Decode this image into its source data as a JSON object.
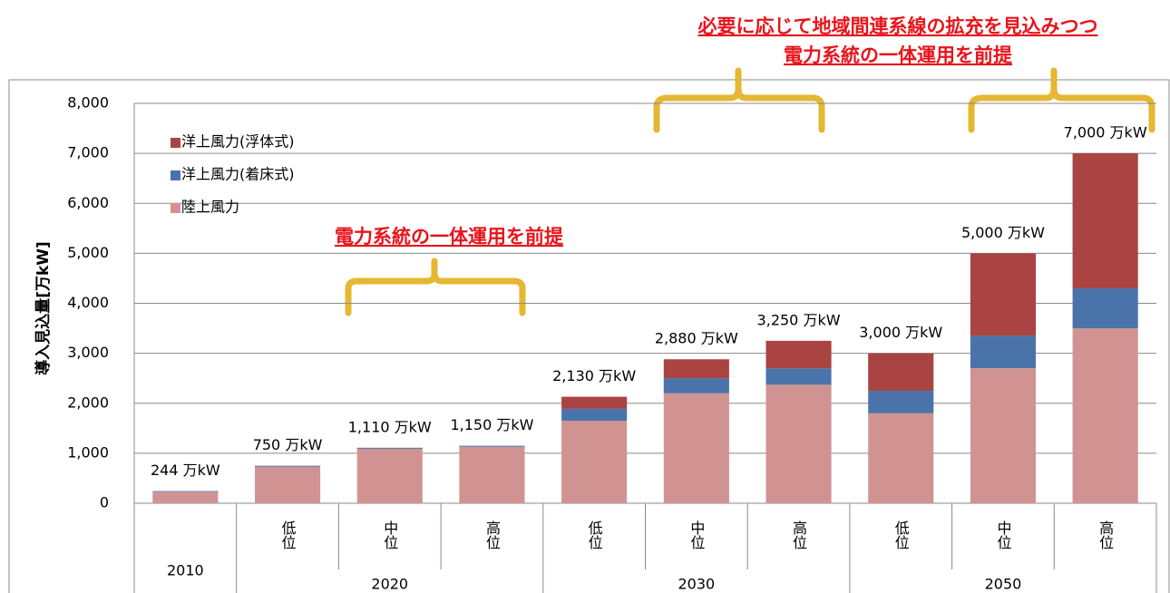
{
  "chart_data": {
    "type": "stacked_bar",
    "y_label": "導入見込量[万kW]",
    "categories": [
      null,
      "低位",
      "中位",
      "高位",
      "低位",
      "中位",
      "高位",
      "低位",
      "中位",
      "高位"
    ],
    "category_groups": [
      "2010",
      "2020",
      "2020",
      "2020",
      "2030",
      "2030",
      "2030",
      "2050",
      "2050",
      "2050"
    ],
    "series": [
      {
        "name": "陸上風力",
        "color": "#d19392",
        "values": [
          230,
          730,
          1090,
          1130,
          1650,
          2200,
          2370,
          1800,
          2700,
          3500
        ]
      },
      {
        "name": "洋上風力(着床式)",
        "color": "#4a74a9",
        "values": [
          14,
          20,
          20,
          20,
          240,
          300,
          330,
          450,
          650,
          800
        ]
      },
      {
        "name": "洋上風力(浮体式)",
        "color": "#a94442",
        "values": [
          0,
          0,
          0,
          0,
          240,
          380,
          550,
          750,
          1650,
          2700
        ]
      }
    ],
    "totals": {
      "values": [
        244,
        750,
        1110,
        1150,
        2130,
        2880,
        3250,
        3000,
        5000,
        7000
      ],
      "value_labels": [
        "244 万kW",
        "750 万kW",
        "1,110 万kW",
        "1,150 万kW",
        "2,130 万kW",
        "2,880 万kW",
        "3,250 万kW",
        "3,000 万kW",
        "5,000 万kW",
        "7,000 万kW"
      ]
    },
    "ylim": [
      0,
      8000
    ],
    "yticks": [
      0,
      {
        "value": 1000,
        "label": "1,000"
      },
      {
        "value": 2000,
        "label": "2,000"
      },
      {
        "value": 3000,
        "label": "3,000"
      },
      {
        "value": 4000,
        "label": "4,000"
      },
      {
        "value": 5000,
        "label": "5,000"
      },
      {
        "value": 6000,
        "label": "6,000"
      },
      {
        "value": 7000,
        "label": "7,000"
      },
      {
        "value": 8000,
        "label": "8,000"
      }
    ],
    "grid": true,
    "annotations": [
      "必要に応じて地域間連系線の拡充を見込みつつ",
      "電力系統の一体運用を前提",
      "電力系統の一体運用を前提"
    ]
  }
}
